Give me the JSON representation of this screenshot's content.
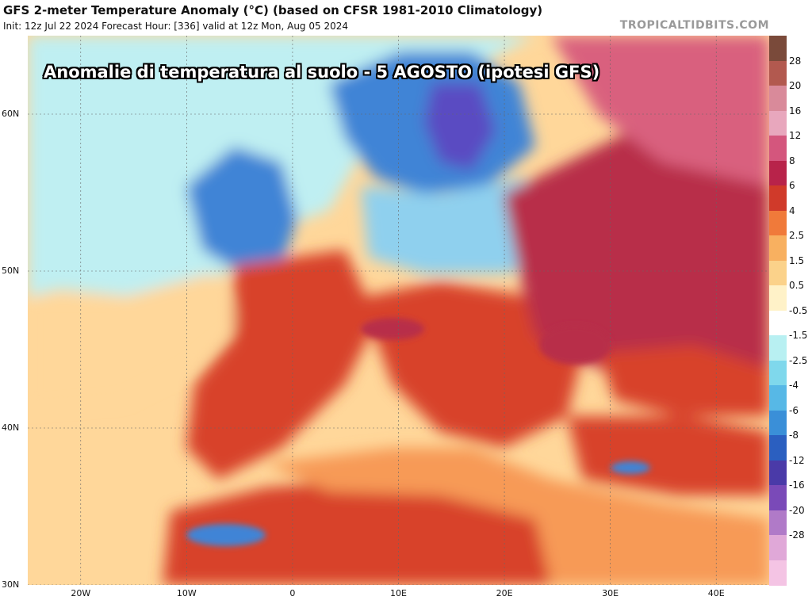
{
  "header": {
    "title": "GFS 2-meter Temperature Anomaly (°C) (based on CFSR 1981-2010 Climatology)",
    "subtitle": "Init: 12z Jul 22 2024   Forecast Hour: [336]   valid at 12z Mon, Aug 05 2024",
    "credit": "TROPICALTIDBITS.COM"
  },
  "overlay_caption": "Anomalie di temperatura al suolo  - 5 AGOSTO (ipotesi GFS)",
  "map": {
    "lat_labels": [
      {
        "text": "60N",
        "lat": 60
      },
      {
        "text": "50N",
        "lat": 50
      },
      {
        "text": "40N",
        "lat": 40
      },
      {
        "text": "30N",
        "lat": 30
      }
    ],
    "lon_labels": [
      {
        "text": "20W",
        "lon": -20
      },
      {
        "text": "10W",
        "lon": -10
      },
      {
        "text": "0",
        "lon": 0
      },
      {
        "text": "10E",
        "lon": 10
      },
      {
        "text": "20E",
        "lon": 20
      },
      {
        "text": "30E",
        "lon": 30
      },
      {
        "text": "40E",
        "lon": 40
      }
    ],
    "extent": {
      "lon_min": -25,
      "lon_max": 45,
      "lat_min": 30,
      "lat_max": 65
    }
  },
  "colorbar": {
    "labels": [
      "28",
      "20",
      "16",
      "12",
      "8",
      "6",
      "4",
      "2.5",
      "1.5",
      "0.5",
      "-0.5",
      "-1.5",
      "-2.5",
      "-4",
      "-6",
      "-8",
      "-12",
      "-16",
      "-20",
      "-28"
    ],
    "colors": [
      "#7a4a3a",
      "#b2594f",
      "#d98a9a",
      "#e8a7bd",
      "#d4567d",
      "#b8234a",
      "#d03a2a",
      "#f07a3a",
      "#f8b060",
      "#fbd28a",
      "#fff2c8",
      "#ffffff",
      "#b8f0f2",
      "#7fd8ec",
      "#57b8e6",
      "#3a8fd8",
      "#2b5fc0",
      "#4a3aa8",
      "#7a4ab8",
      "#b07ac8",
      "#e0a8d8",
      "#f4c4e4"
    ]
  },
  "field_colors": {
    "ocean_warm": "#ffd79a",
    "atlantic_cool": "#bfeff2",
    "cold_blue": "#3f84d6",
    "deep_cold": "#5a4bc2",
    "hot_red": "#d8432c",
    "very_hot": "#b82e4a",
    "pink_hot": "#d9607e",
    "sea_orange": "#f79a56"
  }
}
